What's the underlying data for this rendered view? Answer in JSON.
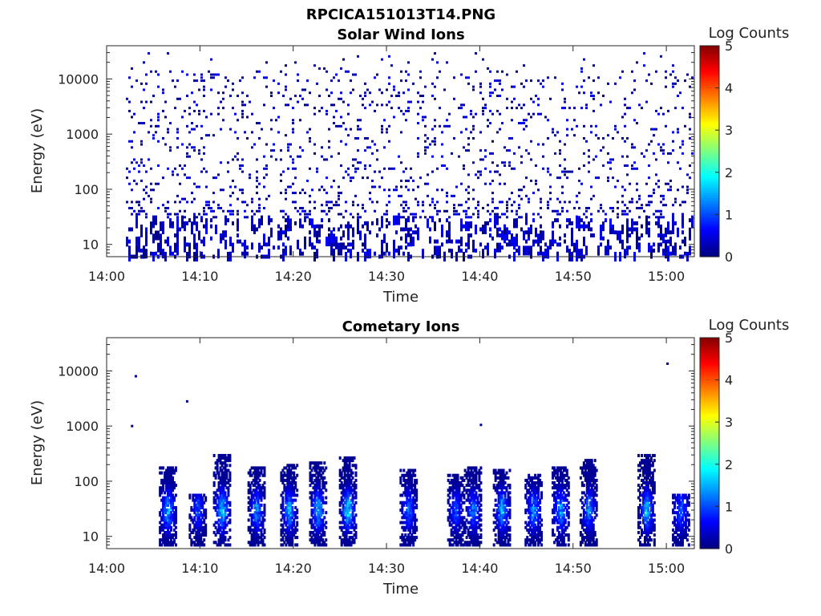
{
  "figure_title": "RPCICA151013T14.PNG",
  "chart_data": [
    {
      "type": "heatmap",
      "title": "Solar Wind Ions",
      "xlabel": "Time",
      "ylabel": "Energy (eV)",
      "colorbar_label": "Log Counts",
      "x_ticks": [
        "14:00",
        "14:10",
        "14:20",
        "14:30",
        "14:40",
        "14:50",
        "15:00"
      ],
      "y_ticks": [
        "10",
        "100",
        "1000",
        "10000"
      ],
      "y_scale": "log",
      "ylim": [
        6,
        40000
      ],
      "xlim_minutes": [
        0,
        63
      ],
      "colorbar_ticks": [
        "0",
        "1",
        "2",
        "3",
        "4",
        "5"
      ],
      "clim": [
        0,
        5
      ],
      "description_of_data": "sparse low-count pixels (log counts ~0-0.5) scattered across 10-30000 eV from 14:02 to 15:02; denser dark blue streaks at 10-60 eV",
      "seed": 7,
      "spots": []
    },
    {
      "type": "heatmap",
      "title": "Cometary Ions",
      "xlabel": "Time",
      "ylabel": "Energy (eV)",
      "colorbar_label": "Log Counts",
      "x_ticks": [
        "14:00",
        "14:10",
        "14:20",
        "14:30",
        "14:40",
        "14:50",
        "15:00"
      ],
      "y_ticks": [
        "10",
        "100",
        "1000",
        "10000"
      ],
      "y_scale": "log",
      "ylim": [
        6,
        40000
      ],
      "xlim_minutes": [
        0,
        63
      ],
      "colorbar_ticks": [
        "0",
        "1",
        "2",
        "3",
        "4",
        "5"
      ],
      "clim": [
        0,
        5
      ],
      "seed": 21,
      "spots": [
        {
          "t": 6.5,
          "emax": 180,
          "peak": 1.8
        },
        {
          "t": 9.7,
          "emax": 60,
          "peak": 1.2
        },
        {
          "t": 12.3,
          "emax": 300,
          "peak": 2.0
        },
        {
          "t": 16.0,
          "emax": 180,
          "peak": 1.6
        },
        {
          "t": 19.5,
          "emax": 200,
          "peak": 1.8
        },
        {
          "t": 22.6,
          "emax": 220,
          "peak": 1.9
        },
        {
          "t": 25.8,
          "emax": 280,
          "peak": 2.0
        },
        {
          "t": 32.3,
          "emax": 160,
          "peak": 1.4
        },
        {
          "t": 37.4,
          "emax": 140,
          "peak": 1.2
        },
        {
          "t": 39.2,
          "emax": 180,
          "peak": 1.5
        },
        {
          "t": 42.3,
          "emax": 160,
          "peak": 1.8
        },
        {
          "t": 45.7,
          "emax": 140,
          "peak": 1.6
        },
        {
          "t": 48.6,
          "emax": 180,
          "peak": 1.7
        },
        {
          "t": 51.6,
          "emax": 240,
          "peak": 1.6
        },
        {
          "t": 57.8,
          "emax": 300,
          "peak": 1.9
        },
        {
          "t": 61.5,
          "emax": 60,
          "peak": 1.4
        }
      ],
      "outliers": [
        {
          "t": 3.0,
          "e": 8000
        },
        {
          "t": 2.6,
          "e": 1000
        },
        {
          "t": 8.5,
          "e": 2800
        },
        {
          "t": 40.0,
          "e": 1050
        },
        {
          "t": 60.0,
          "e": 13500
        }
      ]
    }
  ]
}
